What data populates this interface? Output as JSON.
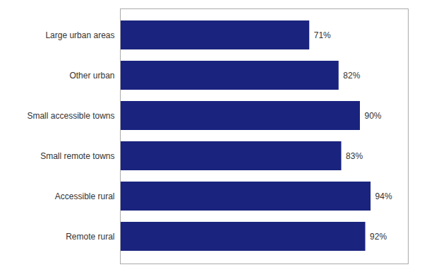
{
  "chart_data": {
    "type": "bar",
    "orientation": "horizontal",
    "categories": [
      "Large urban areas",
      "Other urban",
      "Small accessible towns",
      "Small remote towns",
      "Accessible rural",
      "Remote rural"
    ],
    "values": [
      71,
      82,
      90,
      83,
      94,
      92
    ],
    "value_labels": [
      "71%",
      "82%",
      "90%",
      "83%",
      "94%",
      "92%"
    ],
    "color": "#1a237e",
    "xlim": [
      0,
      108
    ],
    "data_labels": true,
    "tick_labels": "y",
    "grid": false
  }
}
